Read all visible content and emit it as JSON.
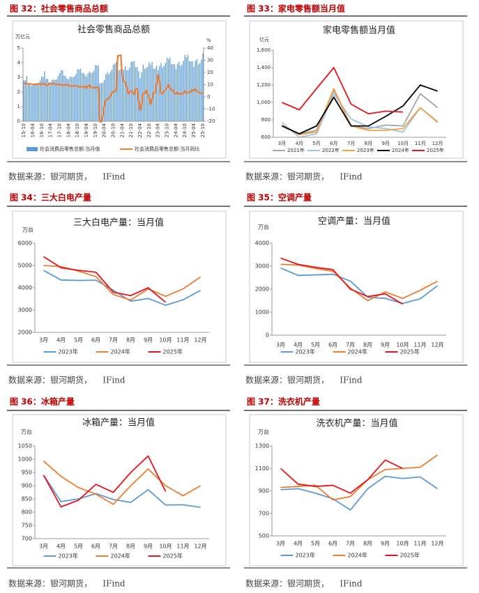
{
  "figures": [
    {
      "caption": "图 32：社会零售商品总额",
      "source": "数据来源：银河期货，    IFind"
    },
    {
      "caption": "图 33：家电零售额当月值",
      "source": "数据来源：银河期货，    IFind"
    },
    {
      "caption": "图 34：三大白电产量",
      "source": "数据来源：银河期货，    IFind"
    },
    {
      "caption": "图 35：空调产量",
      "source": "数据来源：银河期货，    IFind"
    },
    {
      "caption": "图 36：冰箱产量",
      "source": "数据来源：银河期货，    IFind"
    },
    {
      "caption": "图 37：洗衣机产量",
      "source": "数据来源：银河期货，    IFind"
    }
  ],
  "chart_data": [
    {
      "type": "combo",
      "title": "社会零售商品总额",
      "y_unit": "万亿元",
      "y2_unit": "%",
      "categories": [
        "15-10",
        null,
        null,
        null,
        null,
        null,
        "16-04",
        null,
        null,
        null,
        null,
        null,
        "16-10",
        null,
        null,
        null,
        null,
        null,
        "17-04",
        null,
        null,
        null,
        null,
        null,
        "17-10",
        null,
        null,
        null,
        null,
        null,
        "18-04",
        null,
        null,
        null,
        null,
        null,
        "18-10",
        null,
        null,
        null,
        null,
        null,
        "19-04",
        null,
        null,
        null,
        null,
        null,
        "19-10",
        null,
        null,
        null,
        null,
        null,
        "20-04",
        null,
        null,
        null,
        null,
        null,
        "20-10",
        null,
        null,
        null,
        null,
        null,
        "21-04",
        null,
        null,
        null,
        null,
        null,
        "21-10",
        null,
        null,
        null,
        null,
        null,
        "22-04",
        null,
        null,
        null,
        null,
        null,
        "22-10",
        null,
        null,
        null,
        null,
        null,
        "23-04",
        null,
        null,
        null,
        null,
        null,
        "23-10",
        null,
        null,
        null,
        null,
        null,
        "24-04",
        null,
        null,
        null,
        null,
        null,
        "24-10",
        null,
        null,
        null,
        null,
        null,
        "25-04",
        null,
        null,
        null,
        null,
        null,
        "25-10"
      ],
      "ylim": [
        0,
        5
      ],
      "yticks": [
        0,
        1,
        2,
        3,
        4,
        5
      ],
      "y2lim": [
        -20,
        40
      ],
      "y2ticks": [
        -20,
        -10,
        0,
        10,
        20,
        30,
        40
      ],
      "series": [
        {
          "name": "社会消费品零售总额:当月值",
          "type": "bar",
          "color": "#5b9bd5",
          "values": [
            2.79,
            2.81,
            3.1,
            2.6,
            2.6,
            2.42,
            2.43,
            2.59,
            2.58,
            2.56,
            2.62,
            2.8,
            3.05,
            3.03,
            3.41,
            2.9,
            2.9,
            2.68,
            2.66,
            2.84,
            2.83,
            2.81,
            2.87,
            3.07,
            3.28,
            3.47,
            3.48,
            3.1,
            3.1,
            2.93,
            2.88,
            3.06,
            3.03,
            3.0,
            3.09,
            3.21,
            3.55,
            3.53,
            3.59,
            3.3,
            3.3,
            3.17,
            3.06,
            3.26,
            3.39,
            3.29,
            3.34,
            3.45,
            3.85,
            3.81,
            3.8,
            2.6,
            2.6,
            2.64,
            2.82,
            3.2,
            3.35,
            3.22,
            3.36,
            3.53,
            3.86,
            3.95,
            4.06,
            3.5,
            3.5,
            3.56,
            3.32,
            3.54,
            3.76,
            3.49,
            3.49,
            3.68,
            4.05,
            4.1,
            4.11,
            3.7,
            3.7,
            3.42,
            2.95,
            3.35,
            3.86,
            3.59,
            3.63,
            3.73,
            4.03,
            3.86,
            4.05,
            3.6,
            3.6,
            3.79,
            3.49,
            3.76,
            3.99,
            3.68,
            3.79,
            3.98,
            4.33,
            4.25,
            4.35,
            3.9,
            3.9,
            3.9,
            3.57,
            3.92,
            4.07,
            3.78,
            3.87,
            4.12,
            4.53,
            4.38,
            4.55,
            4.1,
            4.1,
            4.09,
            3.72,
            4.13,
            4.23,
            3.88,
            3.97,
            4.2,
            4.63
          ]
        },
        {
          "name": "社会消费品零售总额:当月同比",
          "type": "line",
          "axis": "y2",
          "color": "#ed7d31",
          "values": [
            11.0,
            11.2,
            11.1,
            10.5,
            10.5,
            10.5,
            10.1,
            10.0,
            10.6,
            10.2,
            10.6,
            10.7,
            10.0,
            10.8,
            10.9,
            9.5,
            9.5,
            10.9,
            10.7,
            10.7,
            11.0,
            10.4,
            10.1,
            10.3,
            10.0,
            10.2,
            9.4,
            9.7,
            9.7,
            10.1,
            9.4,
            8.5,
            9.0,
            8.8,
            9.0,
            9.2,
            8.6,
            8.1,
            8.2,
            8.2,
            8.2,
            8.7,
            7.2,
            8.6,
            9.8,
            7.6,
            7.5,
            7.8,
            7.2,
            8.0,
            8.0,
            -20.5,
            -20.5,
            -15.8,
            -7.5,
            -2.8,
            -1.8,
            -1.1,
            0.5,
            3.3,
            4.3,
            5.0,
            4.6,
            33.8,
            33.8,
            34.2,
            17.7,
            12.4,
            12.1,
            8.5,
            2.5,
            4.4,
            4.9,
            3.9,
            1.7,
            6.7,
            6.7,
            -3.5,
            -11.1,
            -6.7,
            3.1,
            2.7,
            5.4,
            2.5,
            -0.5,
            -5.9,
            -1.8,
            3.5,
            3.5,
            10.6,
            18.4,
            12.7,
            3.1,
            2.5,
            4.6,
            5.5,
            7.6,
            10.1,
            7.4,
            5.5,
            5.5,
            3.1,
            2.3,
            3.7,
            2.0,
            2.7,
            2.1,
            3.2,
            4.8,
            3.0,
            3.7,
            4.0,
            4.0,
            5.9,
            5.1,
            6.4,
            4.8,
            3.7,
            3.4,
            3.0,
            2.9
          ]
        }
      ]
    },
    {
      "type": "line",
      "title": "家电零售额当月值",
      "y_unit": "亿元",
      "categories": [
        "3月",
        "4月",
        "5月",
        "6月",
        "7月",
        "8月",
        "9月",
        "10月",
        "11月",
        "12月"
      ],
      "ylim": [
        600,
        1600
      ],
      "yticks": [
        600,
        800,
        {
          "value": 1000,
          "label": "1,000"
        },
        {
          "value": 1200,
          "label": "1,200"
        },
        {
          "value": 1400,
          "label": "1,400"
        },
        {
          "value": 1600,
          "label": "1,600"
        }
      ],
      "series": [
        {
          "name": "2021年",
          "color": "#a5a5a5",
          "values": [
            735,
            640,
            680,
            1140,
            730,
            700,
            740,
            730,
            1100,
            940
          ]
        },
        {
          "name": "2022年",
          "color": "#9dc3e6",
          "values": [
            770,
            600,
            640,
            1100,
            810,
            720,
            700,
            660,
            940,
            780
          ]
        },
        {
          "name": "2023年",
          "color": "#f4a040",
          "values": [
            740,
            630,
            660,
            1160,
            730,
            680,
            680,
            700,
            940,
            770
          ]
        },
        {
          "name": "2024年",
          "color": "#000000",
          "values": [
            730,
            640,
            730,
            1060,
            730,
            730,
            840,
            960,
            1200,
            1130
          ]
        },
        {
          "name": "2025年",
          "color": "#e8141c",
          "values": [
            1000,
            915,
            1160,
            1400,
            980,
            870,
            900,
            890,
            null,
            null
          ]
        }
      ]
    },
    {
      "type": "line",
      "title": "三大白电产量：当月值",
      "y_unit": "万台",
      "categories": [
        "3月",
        "4月",
        "5月",
        "6月",
        "7月",
        "8月",
        "9月",
        "10月",
        "11月",
        "12月"
      ],
      "ylim": [
        2000,
        6000
      ],
      "yticks": [
        2000,
        3000,
        4000,
        5000,
        6000
      ],
      "series": [
        {
          "name": "2023年",
          "color": "#5b9bd5",
          "values": [
            4780,
            4350,
            4330,
            4340,
            3890,
            3400,
            3520,
            3220,
            3460,
            3880
          ]
        },
        {
          "name": "2024年",
          "color": "#ed7d31",
          "values": [
            5000,
            4950,
            4750,
            4500,
            3700,
            3450,
            3950,
            3620,
            3950,
            4480
          ]
        },
        {
          "name": "2025年",
          "color": "#e8141c",
          "values": [
            5400,
            4900,
            4780,
            4700,
            3800,
            3650,
            4000,
            3350,
            null,
            null
          ]
        }
      ]
    },
    {
      "type": "line",
      "title": "空调产量：当月值",
      "y_unit": "万台",
      "categories": [
        "3月",
        "4月",
        "5月",
        "6月",
        "7月",
        "8月",
        "9月",
        "10月",
        "11月",
        "12月"
      ],
      "ylim": [
        0,
        4000
      ],
      "yticks": [
        0,
        1000,
        2000,
        3000,
        4000
      ],
      "series": [
        {
          "name": "2023年",
          "color": "#5b9bd5",
          "values": [
            2920,
            2600,
            2620,
            2650,
            2350,
            1650,
            1600,
            1380,
            1580,
            2150
          ]
        },
        {
          "name": "2024年",
          "color": "#ed7d31",
          "values": [
            3080,
            3050,
            2900,
            2780,
            2050,
            1500,
            1880,
            1600,
            1950,
            2350
          ]
        },
        {
          "name": "2025年",
          "color": "#e8141c",
          "values": [
            3350,
            3080,
            2950,
            2850,
            2000,
            1680,
            1800,
            1350,
            null,
            null
          ]
        }
      ]
    },
    {
      "type": "line",
      "title": "冰箱产量：当月值",
      "y_unit": "万台",
      "categories": [
        "3月",
        "4月",
        "5月",
        "6月",
        "7月",
        "8月",
        "9月",
        "10月",
        "11月",
        "12月"
      ],
      "ylim": [
        700,
        1050
      ],
      "yticks": [
        700,
        750,
        800,
        850,
        900,
        950,
        1000,
        1050
      ],
      "series": [
        {
          "name": "2023年",
          "color": "#5b9bd5",
          "values": [
            940,
            840,
            850,
            870,
            848,
            837,
            885,
            827,
            828,
            818
          ]
        },
        {
          "name": "2024年",
          "color": "#ed7d31",
          "values": [
            993,
            935,
            893,
            868,
            830,
            900,
            963,
            900,
            862,
            900
          ]
        },
        {
          "name": "2025年",
          "color": "#e8141c",
          "values": [
            940,
            820,
            845,
            905,
            875,
            950,
            1012,
            878,
            null,
            null
          ]
        }
      ]
    },
    {
      "type": "line",
      "title": "洗衣机产量：当月值",
      "y_unit": "万台",
      "categories": [
        "3月",
        "4月",
        "5月",
        "6月",
        "7月",
        "8月",
        "9月",
        "10月",
        "11月",
        "12月"
      ],
      "ylim": [
        500,
        1300
      ],
      "yticks": [
        500,
        700,
        900,
        1100,
        1300
      ],
      "series": [
        {
          "name": "2023年",
          "color": "#5b9bd5",
          "values": [
            910,
            920,
            880,
            830,
            730,
            920,
            1030,
            1010,
            1025,
            920
          ]
        },
        {
          "name": "2024年",
          "color": "#ed7d31",
          "values": [
            930,
            940,
            950,
            820,
            850,
            1000,
            1090,
            1100,
            1110,
            1220
          ]
        },
        {
          "name": "2025年",
          "color": "#e8141c",
          "values": [
            1100,
            960,
            940,
            950,
            880,
            1000,
            1175,
            1100,
            null,
            null
          ]
        }
      ]
    }
  ]
}
